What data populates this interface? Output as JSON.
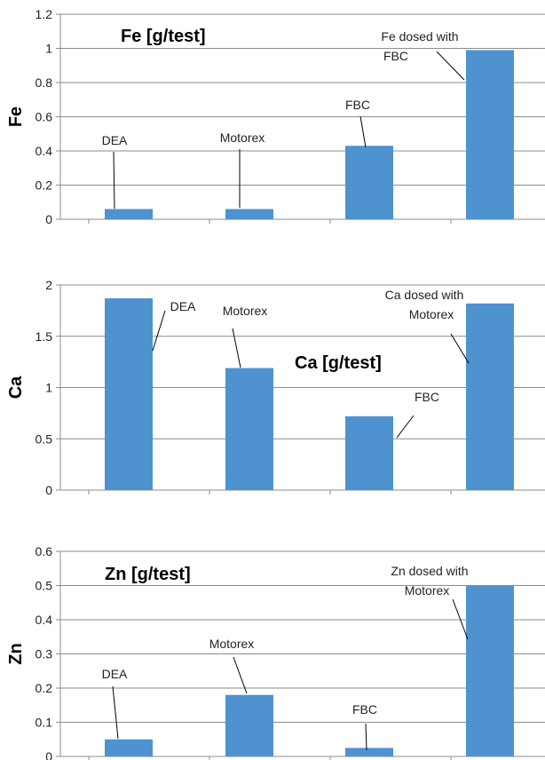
{
  "colors": {
    "bar": "#4f92d0",
    "grid": "#8c8c8c",
    "axis": "#8c8c8c",
    "leader": "#000000"
  },
  "chart_data": [
    {
      "type": "bar",
      "title": "Fe [g/test]",
      "ylabel": "Fe",
      "ylim": [
        0,
        1.2
      ],
      "yticks": [
        "0",
        "0.2",
        "0.4",
        "0.6",
        "0.8",
        "1",
        "1.2"
      ],
      "grid": true,
      "categories": [
        "DEA",
        "Motorex",
        "FBC",
        "FBC"
      ],
      "values": [
        0.06,
        0.06,
        0.43,
        0.99
      ],
      "annotations": [
        {
          "lines": [
            "DEA"
          ]
        },
        {
          "lines": [
            "Motorex"
          ]
        },
        {
          "lines": [
            "FBC"
          ]
        },
        {
          "lines": [
            "Fe dosed with",
            "FBC"
          ]
        }
      ]
    },
    {
      "type": "bar",
      "title": "Ca [g/test]",
      "ylabel": "Ca",
      "ylim": [
        0,
        2
      ],
      "yticks": [
        "0",
        "0.5",
        "1",
        "1.5",
        "2"
      ],
      "grid": true,
      "categories": [
        "DEA",
        "Motorex",
        "FBC",
        "Motorex"
      ],
      "values": [
        1.87,
        1.19,
        0.72,
        1.82
      ],
      "annotations": [
        {
          "lines": [
            "DEA"
          ]
        },
        {
          "lines": [
            "Motorex"
          ]
        },
        {
          "lines": [
            "FBC"
          ]
        },
        {
          "lines": [
            "Ca dosed with",
            "Motorex"
          ]
        }
      ]
    },
    {
      "type": "bar",
      "title": "Zn [g/test]",
      "ylabel": "Zn",
      "ylim": [
        0,
        0.6
      ],
      "yticks": [
        "0",
        "0.1",
        "0.2",
        "0.3",
        "0.4",
        "0.5",
        "0.6"
      ],
      "grid": true,
      "categories": [
        "DEA",
        "Motorex",
        "FBC",
        "Motorex"
      ],
      "values": [
        0.05,
        0.18,
        0.025,
        0.5
      ],
      "annotations": [
        {
          "lines": [
            "DEA"
          ]
        },
        {
          "lines": [
            "Motorex"
          ]
        },
        {
          "lines": [
            "FBC"
          ]
        },
        {
          "lines": [
            "Zn dosed with",
            "Motorex"
          ]
        }
      ]
    }
  ]
}
